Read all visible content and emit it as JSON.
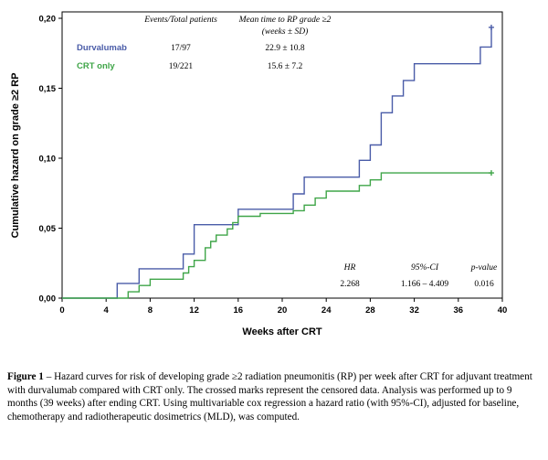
{
  "chart_data": {
    "type": "line",
    "step": true,
    "xlabel": "Weeks after CRT",
    "ylabel": "Cumulative hazard on grade ≥2  RP",
    "xlim": [
      0,
      40
    ],
    "ylim": [
      0,
      0.21
    ],
    "xticks": [
      0,
      4,
      8,
      12,
      16,
      20,
      24,
      28,
      32,
      36,
      40
    ],
    "yticks": [
      {
        "v": 0.0,
        "label": "0,00"
      },
      {
        "v": 0.05,
        "label": "0,05"
      },
      {
        "v": 0.1,
        "label": "0,10"
      },
      {
        "v": 0.15,
        "label": "0,15"
      },
      {
        "v": 0.2,
        "label": "0,20"
      }
    ],
    "series": [
      {
        "name": "Durvalumab",
        "color": "#4a5ca8",
        "points": [
          [
            0,
            0
          ],
          [
            5,
            0
          ],
          [
            5,
            0.0105
          ],
          [
            7,
            0.0105
          ],
          [
            7,
            0.021
          ],
          [
            11,
            0.021
          ],
          [
            11,
            0.0315
          ],
          [
            12,
            0.0315
          ],
          [
            12,
            0.0525
          ],
          [
            16,
            0.0525
          ],
          [
            16,
            0.0635
          ],
          [
            21,
            0.0635
          ],
          [
            21,
            0.0745
          ],
          [
            22,
            0.0745
          ],
          [
            22,
            0.0865
          ],
          [
            27,
            0.0865
          ],
          [
            27,
            0.0985
          ],
          [
            28,
            0.0985
          ],
          [
            28,
            0.1095
          ],
          [
            29,
            0.1095
          ],
          [
            29,
            0.1325
          ],
          [
            30,
            0.1325
          ],
          [
            30,
            0.1445
          ],
          [
            31,
            0.1445
          ],
          [
            31,
            0.1555
          ],
          [
            32,
            0.1555
          ],
          [
            32,
            0.1675
          ],
          [
            38,
            0.1675
          ],
          [
            38,
            0.1795
          ],
          [
            39,
            0.1795
          ],
          [
            39,
            0.1935
          ]
        ],
        "censor": [
          [
            39,
            0.1935
          ]
        ]
      },
      {
        "name": "CRT only",
        "color": "#3fa548",
        "points": [
          [
            0,
            0
          ],
          [
            6,
            0
          ],
          [
            6,
            0.0045
          ],
          [
            7,
            0.0045
          ],
          [
            7,
            0.009
          ],
          [
            8,
            0.009
          ],
          [
            8,
            0.0135
          ],
          [
            11,
            0.0135
          ],
          [
            11,
            0.018
          ],
          [
            11.5,
            0.018
          ],
          [
            11.5,
            0.0225
          ],
          [
            12,
            0.0225
          ],
          [
            12,
            0.027
          ],
          [
            13,
            0.027
          ],
          [
            13,
            0.036
          ],
          [
            13.5,
            0.036
          ],
          [
            13.5,
            0.0405
          ],
          [
            14,
            0.0405
          ],
          [
            14,
            0.045
          ],
          [
            15,
            0.045
          ],
          [
            15,
            0.0495
          ],
          [
            15.5,
            0.0495
          ],
          [
            15.5,
            0.054
          ],
          [
            16,
            0.054
          ],
          [
            16,
            0.0585
          ],
          [
            18,
            0.0585
          ],
          [
            18,
            0.0605
          ],
          [
            21,
            0.0605
          ],
          [
            21,
            0.0625
          ],
          [
            22,
            0.0625
          ],
          [
            22,
            0.0665
          ],
          [
            23,
            0.0665
          ],
          [
            23,
            0.0715
          ],
          [
            24,
            0.0715
          ],
          [
            24,
            0.0765
          ],
          [
            27,
            0.0765
          ],
          [
            27,
            0.0805
          ],
          [
            28,
            0.0805
          ],
          [
            28,
            0.0845
          ],
          [
            29,
            0.0845
          ],
          [
            29,
            0.0895
          ],
          [
            39,
            0.0895
          ]
        ],
        "censor": [
          [
            39,
            0.0895
          ]
        ]
      }
    ]
  },
  "summary_table": {
    "header_events": "Events/Total patients",
    "header_mean": "Mean time to RP grade ≥2",
    "header_mean_sub": "(weeks ± SD)",
    "rows": [
      {
        "label": "Durvalumab",
        "color": "#4a5ca8",
        "events": "17/97",
        "mean": "22.9 ± 10.8"
      },
      {
        "label": "CRT only",
        "color": "#3fa548",
        "events": "19/221",
        "mean": "15.6 ± 7.2"
      }
    ]
  },
  "hr_table": {
    "headers": [
      "HR",
      "95%-CI",
      "p-value"
    ],
    "values": [
      "2.268",
      "1.166 – 4.409",
      "0.016"
    ]
  },
  "caption": {
    "label": "Figure 1",
    "text": " –  Hazard curves for risk of developing grade ≥2 radiation pneumonitis (RP) per week after CRT for adjuvant treatment with durvalumab compared with CRT only. The crossed marks represent the censored data. Analysis was performed up to 9 months (39 weeks) after ending CRT. Using multivariable cox regression a hazard ratio (with 95%-CI),  adjusted for baseline, chemotherapy and radiotherapeutic dosimetrics (MLD), was computed."
  }
}
